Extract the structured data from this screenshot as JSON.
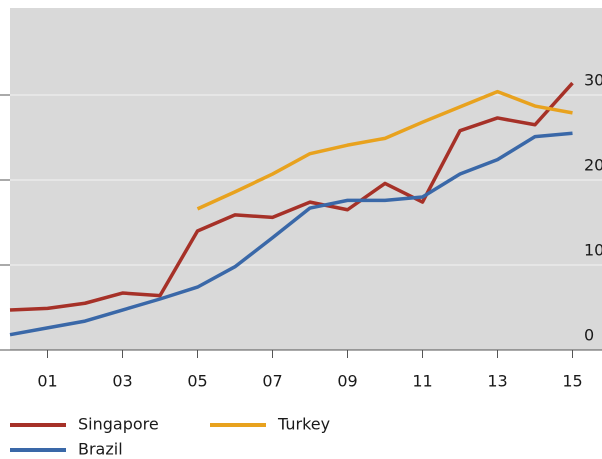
{
  "chart_data": {
    "type": "line",
    "categories": [
      null,
      "01",
      null,
      "03",
      null,
      "05",
      null,
      "07",
      null,
      "09",
      null,
      "11",
      null,
      "13",
      null,
      "15"
    ],
    "series": [
      {
        "name": "Singapore",
        "color": "#a63128",
        "values": [
          4.7,
          4.9,
          5.5,
          6.7,
          6.4,
          14.0,
          15.9,
          15.6,
          17.4,
          16.5,
          19.6,
          17.4,
          25.8,
          27.3,
          26.5,
          31.4
        ]
      },
      {
        "name": "Brazil",
        "color": "#3a68a8",
        "values": [
          1.8,
          2.6,
          3.4,
          4.7,
          6.0,
          7.4,
          9.8,
          13.2,
          16.7,
          17.6,
          17.6,
          18.0,
          20.7,
          22.4,
          25.1,
          25.5
        ]
      },
      {
        "name": "Turkey",
        "color": "#e8a21e",
        "values": [
          null,
          null,
          null,
          null,
          null,
          16.6,
          18.6,
          20.7,
          23.1,
          24.1,
          24.9,
          26.8,
          28.6,
          30.4,
          28.7,
          27.9
        ]
      }
    ],
    "ylim": [
      0,
      40
    ],
    "yticks": [
      0,
      10,
      20,
      30
    ],
    "grid": true
  }
}
